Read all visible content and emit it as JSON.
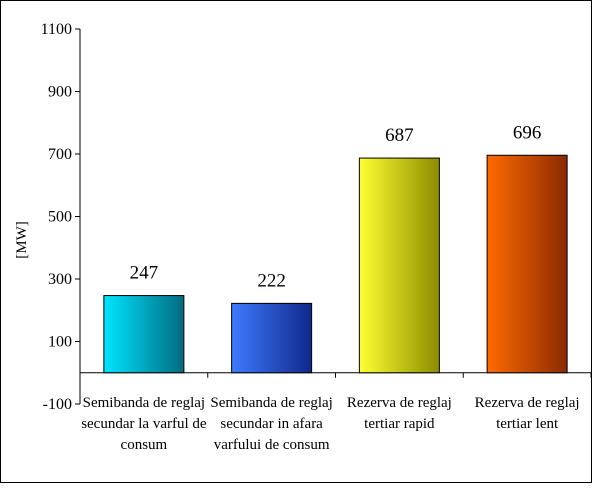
{
  "chart_data": {
    "type": "bar",
    "ylabel": "[MW]",
    "xlabel": "",
    "title": "",
    "ylim": [
      -100,
      1100
    ],
    "yticks": [
      -100,
      100,
      300,
      500,
      700,
      900,
      1100
    ],
    "ytick_labels": [
      "-100",
      "100",
      "300",
      "500",
      "700",
      "900",
      "1100"
    ],
    "grid": false,
    "legend": "none",
    "categories": [
      [
        "Semibanda de reglaj",
        "secundar la varful de",
        "consum"
      ],
      [
        "Semibanda de reglaj",
        "secundar in afara",
        "varfului de consum"
      ],
      [
        "Rezerva de reglaj",
        "tertiar rapid"
      ],
      [
        "Rezerva de reglaj",
        "tertiar lent"
      ]
    ],
    "values": [
      247,
      222,
      687,
      696
    ],
    "data_labels": [
      "247",
      "222",
      "687",
      "696"
    ],
    "colors": [
      [
        "#00e5ff",
        "#006b80"
      ],
      [
        "#3d7bff",
        "#10288a"
      ],
      [
        "#ffff33",
        "#8c8c00"
      ],
      [
        "#ff6a00",
        "#8a2a00"
      ]
    ]
  }
}
